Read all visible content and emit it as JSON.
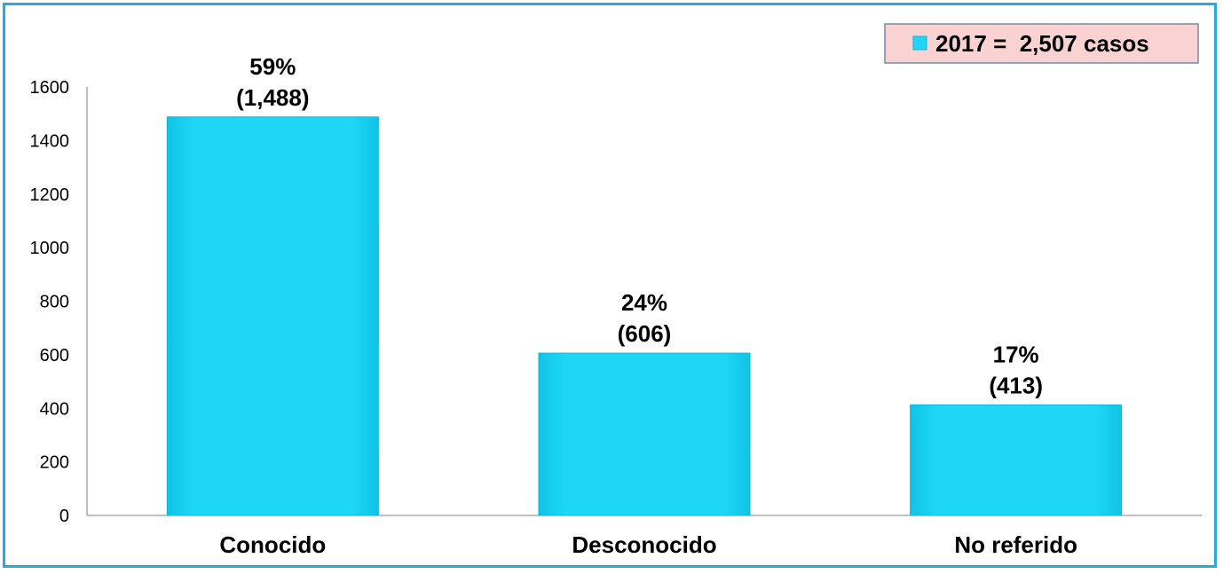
{
  "chart_data": {
    "type": "bar",
    "categories": [
      "Conocido",
      "Desconocido",
      "No referido"
    ],
    "values": [
      1488,
      606,
      413
    ],
    "data_labels": [
      {
        "percent": "59%",
        "count": "(1,488)"
      },
      {
        "percent": "24%",
        "count": "(606)"
      },
      {
        "percent": "17%",
        "count": "(413)"
      }
    ],
    "series": [
      {
        "name": "2017 =  2,507 casos",
        "values": [
          1488,
          606,
          413
        ]
      }
    ],
    "yticks": [
      "0",
      "200",
      "400",
      "600",
      "800",
      "1000",
      "1200",
      "1400",
      "1600"
    ],
    "ylim": [
      0,
      1600
    ],
    "xlabel": "",
    "ylabel": "",
    "title": "",
    "grid": false,
    "legend_position": "top-right",
    "colors": {
      "bar": "#1ed6f5",
      "bar_edge": "#0fb4d6",
      "frame": "#29a9e1",
      "legend_bg": "#fbd2d2",
      "legend_border": "#6e8da6"
    }
  }
}
